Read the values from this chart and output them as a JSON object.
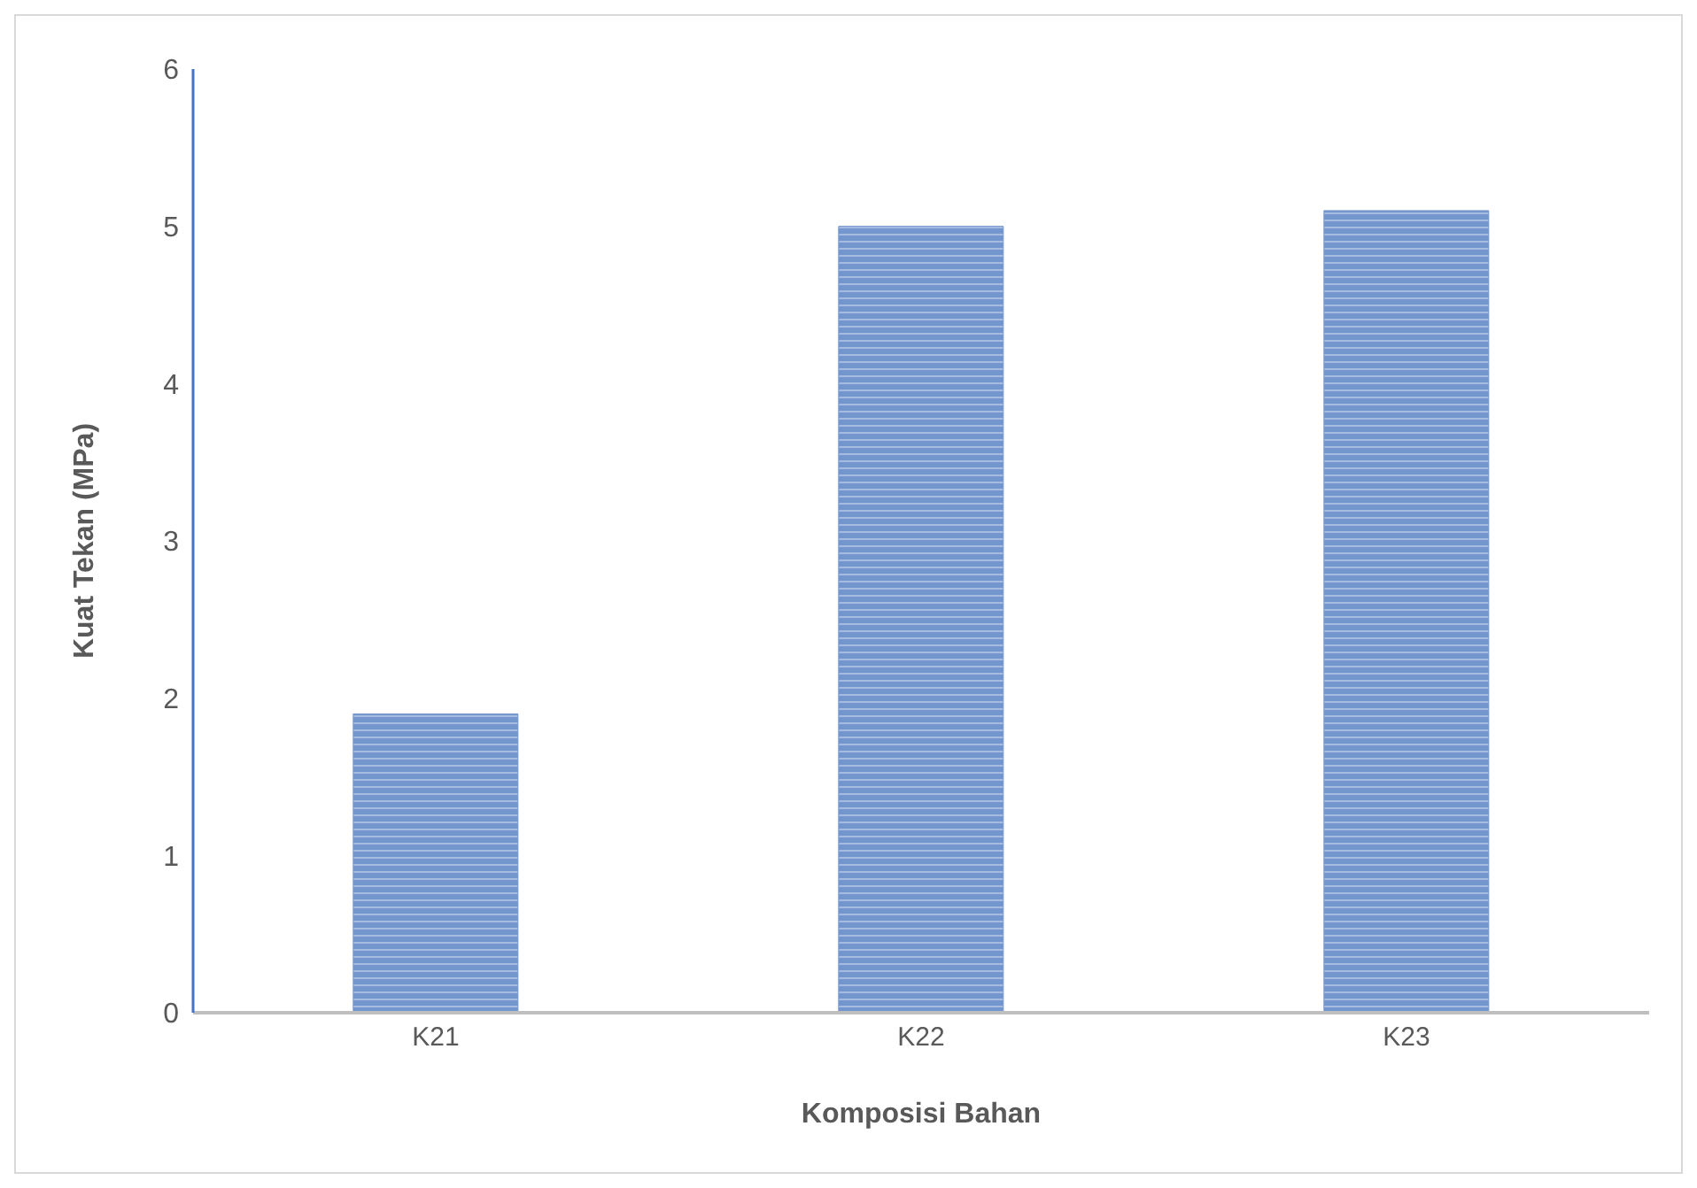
{
  "chart_data": {
    "type": "bar",
    "xlabel": "Komposisi Bahan",
    "ylabel": "Kuat Tekan (MPa)",
    "categories": [
      "K21",
      "K22",
      "K23"
    ],
    "values": [
      1.9,
      5.0,
      5.1
    ],
    "color": "#7496cf",
    "ylim": [
      0,
      6
    ],
    "yticks": [
      0,
      1,
      2,
      3,
      4,
      5,
      6
    ],
    "grid": false,
    "legend": false
  }
}
